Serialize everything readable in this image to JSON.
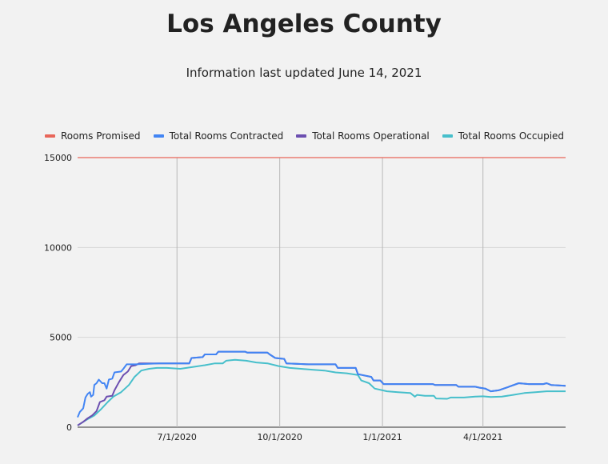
{
  "header": {
    "title": "Los Angeles County",
    "subtitle": "Information last updated June 14, 2021"
  },
  "chart_data": {
    "type": "line",
    "y_ticks": [
      "15000",
      "10000",
      "5000",
      "0"
    ],
    "x_ticks": [
      "7/1/2020",
      "10/1/2020",
      "1/1/2021",
      "4/1/2021"
    ],
    "x_range": [
      "2020-04-03",
      "2021-06-14"
    ],
    "ylim": [
      0,
      15000
    ],
    "grid": true,
    "legend_position": "top-left",
    "series": [
      {
        "name": "Rooms Promised",
        "color": "#e8665a",
        "points": [
          [
            "2020-04-03",
            15000
          ],
          [
            "2021-06-14",
            15000
          ]
        ]
      },
      {
        "name": "Total Rooms Contracted",
        "color": "#4285f4",
        "points": [
          [
            "2020-04-03",
            550
          ],
          [
            "2020-04-05",
            850
          ],
          [
            "2020-04-08",
            1050
          ],
          [
            "2020-04-10",
            1650
          ],
          [
            "2020-04-12",
            1850
          ],
          [
            "2020-04-14",
            1950
          ],
          [
            "2020-04-15",
            1700
          ],
          [
            "2020-04-17",
            1800
          ],
          [
            "2020-04-18",
            2350
          ],
          [
            "2020-04-20",
            2450
          ],
          [
            "2020-04-22",
            2650
          ],
          [
            "2020-04-25",
            2450
          ],
          [
            "2020-04-27",
            2450
          ],
          [
            "2020-04-29",
            2150
          ],
          [
            "2020-05-01",
            2650
          ],
          [
            "2020-05-04",
            2700
          ],
          [
            "2020-05-06",
            3050
          ],
          [
            "2020-05-12",
            3100
          ],
          [
            "2020-05-14",
            3250
          ],
          [
            "2020-05-17",
            3500
          ],
          [
            "2020-05-25",
            3500
          ],
          [
            "2020-06-15",
            3550
          ],
          [
            "2020-07-12",
            3550
          ],
          [
            "2020-07-14",
            3850
          ],
          [
            "2020-07-24",
            3900
          ],
          [
            "2020-07-26",
            4050
          ],
          [
            "2020-08-05",
            4050
          ],
          [
            "2020-08-07",
            4200
          ],
          [
            "2020-08-31",
            4200
          ],
          [
            "2020-09-02",
            4150
          ],
          [
            "2020-09-20",
            4150
          ],
          [
            "2020-09-22",
            4050
          ],
          [
            "2020-09-27",
            3850
          ],
          [
            "2020-10-05",
            3800
          ],
          [
            "2020-10-07",
            3550
          ],
          [
            "2020-10-27",
            3500
          ],
          [
            "2020-11-20",
            3500
          ],
          [
            "2020-11-22",
            3300
          ],
          [
            "2020-12-08",
            3300
          ],
          [
            "2020-12-10",
            2950
          ],
          [
            "2020-12-22",
            2800
          ],
          [
            "2020-12-24",
            2600
          ],
          [
            "2020-12-30",
            2600
          ],
          [
            "2021-01-02",
            2400
          ],
          [
            "2021-02-15",
            2400
          ],
          [
            "2021-02-17",
            2350
          ],
          [
            "2021-03-08",
            2350
          ],
          [
            "2021-03-10",
            2250
          ],
          [
            "2021-03-25",
            2250
          ],
          [
            "2021-03-29",
            2200
          ],
          [
            "2021-04-03",
            2150
          ],
          [
            "2021-04-08",
            2000
          ],
          [
            "2021-04-15",
            2050
          ],
          [
            "2021-04-22",
            2200
          ],
          [
            "2021-05-03",
            2450
          ],
          [
            "2021-05-12",
            2400
          ],
          [
            "2021-05-25",
            2400
          ],
          [
            "2021-05-28",
            2450
          ],
          [
            "2021-06-01",
            2350
          ],
          [
            "2021-06-14",
            2300
          ]
        ]
      },
      {
        "name": "Total Rooms Operational",
        "color": "#6c4fb0",
        "points": [
          [
            "2020-04-03",
            100
          ],
          [
            "2020-04-08",
            300
          ],
          [
            "2020-04-12",
            500
          ],
          [
            "2020-04-16",
            650
          ],
          [
            "2020-04-20",
            900
          ],
          [
            "2020-04-23",
            1400
          ],
          [
            "2020-04-27",
            1500
          ],
          [
            "2020-04-29",
            1700
          ],
          [
            "2020-05-04",
            1750
          ],
          [
            "2020-05-06",
            2050
          ],
          [
            "2020-05-10",
            2500
          ],
          [
            "2020-05-14",
            2900
          ],
          [
            "2020-05-18",
            3100
          ],
          [
            "2020-05-21",
            3400
          ],
          [
            "2020-05-25",
            3450
          ],
          [
            "2020-05-28",
            3550
          ],
          [
            "2020-06-15",
            3550
          ],
          [
            "2020-07-12",
            3550
          ],
          [
            "2020-07-14",
            3850
          ],
          [
            "2020-07-24",
            3900
          ],
          [
            "2020-07-26",
            4050
          ],
          [
            "2020-08-05",
            4050
          ],
          [
            "2020-08-07",
            4200
          ],
          [
            "2020-08-31",
            4200
          ],
          [
            "2020-09-02",
            4150
          ],
          [
            "2020-09-20",
            4150
          ],
          [
            "2020-09-22",
            4050
          ],
          [
            "2020-09-27",
            3850
          ],
          [
            "2020-10-05",
            3800
          ],
          [
            "2020-10-07",
            3550
          ],
          [
            "2020-10-27",
            3500
          ],
          [
            "2020-11-20",
            3500
          ],
          [
            "2020-11-22",
            3300
          ],
          [
            "2020-12-08",
            3300
          ],
          [
            "2020-12-10",
            2950
          ],
          [
            "2020-12-22",
            2800
          ],
          [
            "2020-12-24",
            2600
          ],
          [
            "2020-12-30",
            2600
          ],
          [
            "2021-01-02",
            2400
          ],
          [
            "2021-02-15",
            2400
          ],
          [
            "2021-02-17",
            2350
          ],
          [
            "2021-03-08",
            2350
          ],
          [
            "2021-03-10",
            2250
          ],
          [
            "2021-03-25",
            2250
          ],
          [
            "2021-03-29",
            2200
          ],
          [
            "2021-04-03",
            2150
          ],
          [
            "2021-04-08",
            2000
          ],
          [
            "2021-04-15",
            2050
          ],
          [
            "2021-04-22",
            2200
          ],
          [
            "2021-05-03",
            2450
          ],
          [
            "2021-05-12",
            2400
          ],
          [
            "2021-05-25",
            2400
          ],
          [
            "2021-05-28",
            2450
          ],
          [
            "2021-06-01",
            2350
          ],
          [
            "2021-06-14",
            2300
          ]
        ]
      },
      {
        "name": "Total Rooms Occupied",
        "color": "#47bfcb",
        "points": [
          [
            "2020-04-03",
            100
          ],
          [
            "2020-04-08",
            300
          ],
          [
            "2020-04-12",
            450
          ],
          [
            "2020-04-18",
            650
          ],
          [
            "2020-04-24",
            1000
          ],
          [
            "2020-04-30",
            1400
          ],
          [
            "2020-05-05",
            1700
          ],
          [
            "2020-05-12",
            1950
          ],
          [
            "2020-05-19",
            2350
          ],
          [
            "2020-05-24",
            2800
          ],
          [
            "2020-05-30",
            3150
          ],
          [
            "2020-06-06",
            3250
          ],
          [
            "2020-06-13",
            3300
          ],
          [
            "2020-06-22",
            3300
          ],
          [
            "2020-07-04",
            3250
          ],
          [
            "2020-07-15",
            3350
          ],
          [
            "2020-07-26",
            3450
          ],
          [
            "2020-08-04",
            3550
          ],
          [
            "2020-08-11",
            3550
          ],
          [
            "2020-08-14",
            3700
          ],
          [
            "2020-08-22",
            3750
          ],
          [
            "2020-09-01",
            3700
          ],
          [
            "2020-09-10",
            3600
          ],
          [
            "2020-09-20",
            3550
          ],
          [
            "2020-09-30",
            3400
          ],
          [
            "2020-10-10",
            3300
          ],
          [
            "2020-10-20",
            3250
          ],
          [
            "2020-10-30",
            3200
          ],
          [
            "2020-11-10",
            3150
          ],
          [
            "2020-11-20",
            3050
          ],
          [
            "2020-11-30",
            3000
          ],
          [
            "2020-12-10",
            2900
          ],
          [
            "2020-12-13",
            2600
          ],
          [
            "2020-12-20",
            2450
          ],
          [
            "2020-12-25",
            2150
          ],
          [
            "2021-01-05",
            2000
          ],
          [
            "2021-01-15",
            1950
          ],
          [
            "2021-01-26",
            1900
          ],
          [
            "2021-01-30",
            1700
          ],
          [
            "2021-02-01",
            1800
          ],
          [
            "2021-02-08",
            1750
          ],
          [
            "2021-02-16",
            1750
          ],
          [
            "2021-02-18",
            1600
          ],
          [
            "2021-02-28",
            1580
          ],
          [
            "2021-03-03",
            1650
          ],
          [
            "2021-03-15",
            1650
          ],
          [
            "2021-03-25",
            1700
          ],
          [
            "2021-04-01",
            1720
          ],
          [
            "2021-04-08",
            1680
          ],
          [
            "2021-04-18",
            1700
          ],
          [
            "2021-04-28",
            1800
          ],
          [
            "2021-05-08",
            1900
          ],
          [
            "2021-05-18",
            1950
          ],
          [
            "2021-05-28",
            2000
          ],
          [
            "2021-06-14",
            2000
          ]
        ]
      }
    ]
  }
}
